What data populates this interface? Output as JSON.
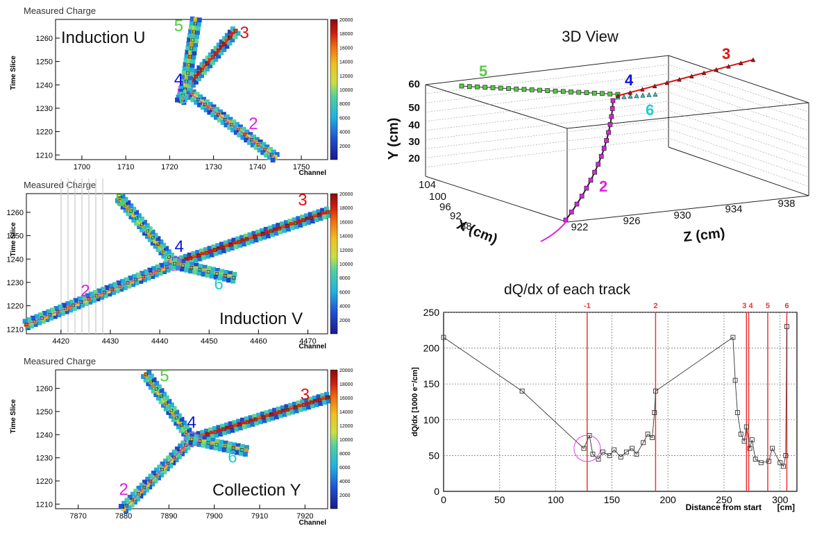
{
  "colors": {
    "tk2": "#e020e0",
    "tk3": "#dd1111",
    "tk4": "#1111dd",
    "tk5": "#55cc44",
    "tk6": "#22cccc",
    "vline": "#ee3333",
    "circle": "#e040e0"
  },
  "colorbar": {
    "min": 0,
    "max": 20000,
    "labels": [
      "2000",
      "4000",
      "6000",
      "8000",
      "10000",
      "12000",
      "14000",
      "16000",
      "18000",
      "20000"
    ]
  },
  "wire_planes": [
    {
      "id": "u",
      "title": "Measured Charge",
      "plane_label": "Induction U",
      "xlabel": "Channel",
      "ylabel": "Time Slice",
      "xrange": [
        1694,
        1756
      ],
      "xticks": [
        "1700",
        "1710",
        "1720",
        "1730",
        "1740",
        "1750"
      ],
      "yrange": [
        1208,
        1268
      ],
      "yticks": [
        "1210",
        "1220",
        "1230",
        "1240",
        "1250",
        "1260"
      ],
      "vertex": [
        1723.5,
        1238
      ],
      "tracks": [
        {
          "id": "2",
          "from": [
            1723.5,
            1238
          ],
          "to": [
            1744,
            1209
          ]
        },
        {
          "id": "3",
          "from": [
            1723.5,
            1238
          ],
          "to": [
            1735,
            1263
          ]
        },
        {
          "id": "5",
          "from": [
            1723.5,
            1238
          ],
          "to": [
            1726,
            1268
          ]
        },
        {
          "id": "6",
          "from": [
            1723.5,
            1238
          ],
          "to": [
            1722.5,
            1233
          ]
        }
      ],
      "labels": [
        {
          "text": "5",
          "color": "tk5",
          "x": 1721,
          "y": 1263
        },
        {
          "text": "3",
          "color": "tk3",
          "x": 1736,
          "y": 1260
        },
        {
          "text": "4",
          "color": "tk4",
          "x": 1721,
          "y": 1240
        },
        {
          "text": "6",
          "color": "tk6",
          "x": 1722,
          "y": 1232
        },
        {
          "text": "2",
          "color": "tk2",
          "x": 1738,
          "y": 1221
        }
      ]
    },
    {
      "id": "v",
      "title": "Measured Charge",
      "plane_label": "Induction V",
      "xlabel": "Channel",
      "ylabel": "Time Slice",
      "xrange": [
        4413,
        4474
      ],
      "xticks": [
        "4420",
        "4430",
        "4440",
        "4450",
        "4460",
        "4470"
      ],
      "yrange": [
        1208,
        1268
      ],
      "yticks": [
        "1210",
        "1220",
        "1230",
        "1240",
        "1250",
        "1260"
      ],
      "vertex": [
        4443,
        1238
      ],
      "tracks": [
        {
          "id": "2",
          "from": [
            4443,
            1238
          ],
          "to": [
            4413,
            1212
          ]
        },
        {
          "id": "3",
          "from": [
            4443,
            1238
          ],
          "to": [
            4474,
            1260
          ]
        },
        {
          "id": "5",
          "from": [
            4443,
            1238
          ],
          "to": [
            4432,
            1266
          ]
        },
        {
          "id": "6",
          "from": [
            4443,
            1238
          ],
          "to": [
            4455,
            1232
          ]
        }
      ],
      "labels": [
        {
          "text": "5",
          "color": "tk5",
          "x": 4431,
          "y": 1263
        },
        {
          "text": "3",
          "color": "tk3",
          "x": 4468,
          "y": 1263
        },
        {
          "text": "4",
          "color": "tk4",
          "x": 4443,
          "y": 1243
        },
        {
          "text": "6",
          "color": "tk6",
          "x": 4451,
          "y": 1227
        },
        {
          "text": "2",
          "color": "tk2",
          "x": 4424,
          "y": 1224
        }
      ]
    },
    {
      "id": "y",
      "title": "Measured Charge",
      "plane_label": "Collection Y",
      "xlabel": "Channel",
      "ylabel": "Time Slice",
      "xrange": [
        7865,
        7925
      ],
      "xticks": [
        "7870",
        "7880",
        "7890",
        "7900",
        "7910",
        "7920"
      ],
      "yrange": [
        1208,
        1268
      ],
      "yticks": [
        "1210",
        "1220",
        "1230",
        "1240",
        "1250",
        "1260"
      ],
      "vertex": [
        7895,
        1238
      ],
      "tracks": [
        {
          "id": "2",
          "from": [
            7895,
            1238
          ],
          "to": [
            7880,
            1208
          ]
        },
        {
          "id": "3",
          "from": [
            7895,
            1238
          ],
          "to": [
            7925,
            1256
          ]
        },
        {
          "id": "5",
          "from": [
            7895,
            1238
          ],
          "to": [
            7885,
            1266
          ]
        },
        {
          "id": "6",
          "from": [
            7895,
            1238
          ],
          "to": [
            7907,
            1233
          ]
        }
      ],
      "labels": [
        {
          "text": "5",
          "color": "tk5",
          "x": 7888,
          "y": 1263
        },
        {
          "text": "3",
          "color": "tk3",
          "x": 7919,
          "y": 1255
        },
        {
          "text": "4",
          "color": "tk4",
          "x": 7894,
          "y": 1243
        },
        {
          "text": "6",
          "color": "tk6",
          "x": 7903,
          "y": 1228
        },
        {
          "text": "2",
          "color": "tk2",
          "x": 7879,
          "y": 1214
        }
      ]
    }
  ],
  "view3d": {
    "title": "3D View",
    "ylabel": "Y (cm)",
    "xlabel": "X (cm)",
    "zlabel": "Z (cm)",
    "yticks": [
      "20",
      "30",
      "40",
      "50",
      "60"
    ],
    "xticks": [
      "104",
      "100",
      "96",
      "92",
      "88"
    ],
    "zticks": [
      "922",
      "926",
      "930",
      "934",
      "938"
    ],
    "labels": [
      {
        "text": "5",
        "color": "tk5"
      },
      {
        "text": "4",
        "color": "tk4"
      },
      {
        "text": "3",
        "color": "tk3"
      },
      {
        "text": "6",
        "color": "tk6"
      },
      {
        "text": "2",
        "color": "tk2"
      }
    ]
  },
  "chart_data": {
    "type": "line",
    "title": "dQ/dx of each track",
    "xlabel": "Distance from start",
    "xunit": "[cm]",
    "ylabel": "dQ/dx [1000 e⁻/cm]",
    "xlim": [
      0,
      315
    ],
    "ylim": [
      0,
      250
    ],
    "xticks": [
      "0",
      "50",
      "100",
      "150",
      "200",
      "250",
      "300"
    ],
    "yticks": [
      "0",
      "50",
      "100",
      "150",
      "200",
      "250"
    ],
    "grid": true,
    "series": [
      {
        "name": "dQ/dx",
        "x": [
          0,
          70,
          125,
          130,
          133,
          138,
          142,
          148,
          152,
          158,
          163,
          168,
          172,
          178,
          182,
          186,
          188,
          189,
          258,
          260,
          262,
          265,
          268,
          270,
          273,
          275,
          278,
          283,
          290,
          293,
          300,
          303,
          305,
          306
        ],
        "y": [
          215,
          140,
          60,
          78,
          52,
          45,
          55,
          50,
          58,
          48,
          55,
          60,
          52,
          68,
          80,
          75,
          110,
          140,
          215,
          155,
          110,
          80,
          70,
          90,
          60,
          72,
          45,
          40,
          42,
          60,
          40,
          35,
          50,
          230
        ]
      }
    ],
    "track_boundaries": [
      {
        "label": "-1",
        "x": 128
      },
      {
        "label": "2",
        "x": 189
      },
      {
        "label": "3",
        "x": 270
      },
      {
        "label": "4",
        "x": 272
      },
      {
        "label": "5",
        "x": 289
      },
      {
        "label": "6",
        "x": 306
      }
    ],
    "vertex_circle": {
      "x": 128,
      "y": 60
    }
  }
}
